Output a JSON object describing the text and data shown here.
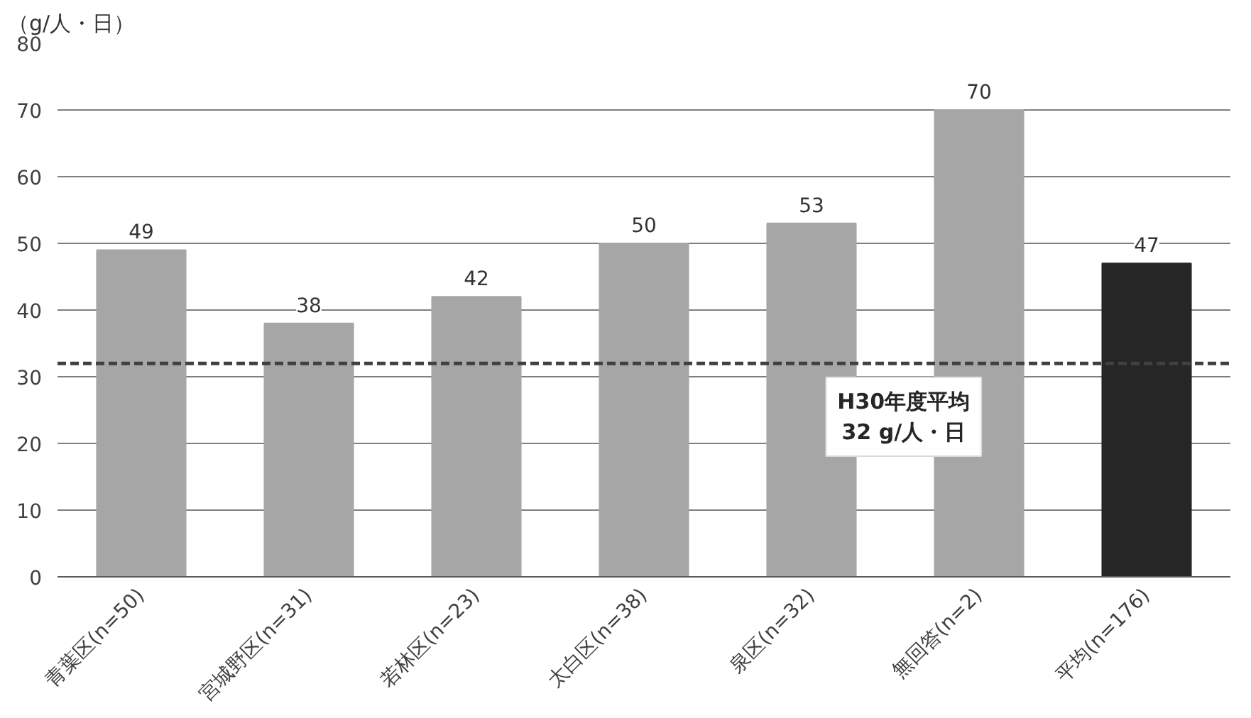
{
  "chart_data": {
    "type": "bar",
    "ylabel": "（g/人・日）",
    "categories": [
      "青葉区(n=50)",
      "宮城野区(n=31)",
      "若林区(n=23)",
      "太白区(n=38)",
      "泉区(n=32)",
      "無回答(n=2)",
      "平均(n=176)"
    ],
    "values": [
      49,
      38,
      42,
      50,
      53,
      70,
      47
    ],
    "colors": [
      "#a6a6a6",
      "#a6a6a6",
      "#a6a6a6",
      "#a6a6a6",
      "#a6a6a6",
      "#a6a6a6",
      "#262626"
    ],
    "data_labels": true,
    "ylim": [
      0,
      80
    ],
    "yticks": [
      0,
      10,
      20,
      30,
      40,
      50,
      60,
      70,
      80
    ],
    "grid": "y",
    "ref_lines": [
      {
        "axis": "y",
        "value": 32,
        "label": "H30年度平均\n32 g/人・日",
        "color": "#404040",
        "line_style": "dashed"
      }
    ]
  }
}
